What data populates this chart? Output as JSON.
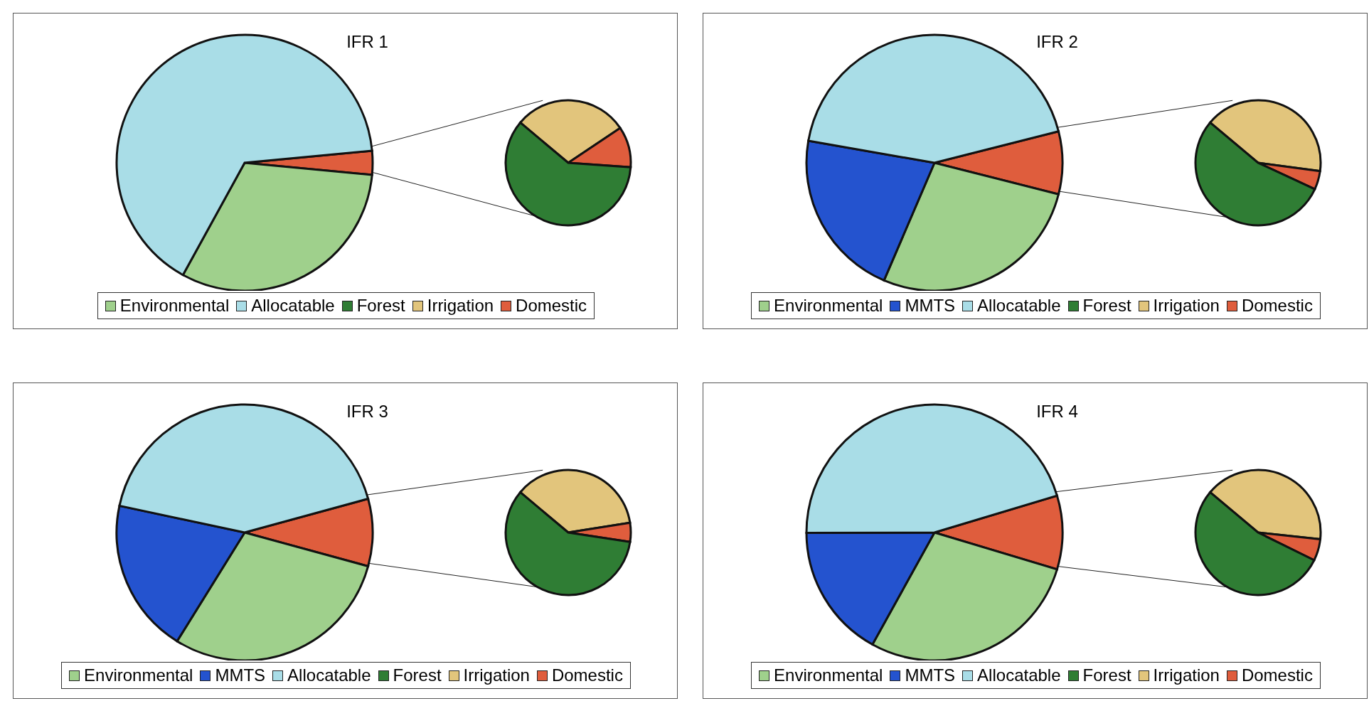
{
  "chart_data": [
    {
      "type": "pie",
      "title": "IFR 1",
      "categories": [
        "Environmental",
        "Allocatable",
        "Forest",
        "Irrigation",
        "Domestic"
      ],
      "colors": [
        "#9fd08c",
        "#a9dde7",
        "#2f7d34",
        "#e2c57c",
        "#df5d3d"
      ],
      "legend": "bottom",
      "series": [
        {
          "values": [
            31.5,
            65.5,
            null,
            null,
            3
          ]
        },
        {
          "values": [
            null,
            null,
            60,
            29.5,
            10.5
          ]
        }
      ]
    },
    {
      "type": "pie",
      "title": "IFR 2",
      "categories": [
        "Environmental",
        "MMTS",
        "Allocatable",
        "Forest",
        "Irrigation",
        "Domestic"
      ],
      "colors": [
        "#9fd08c",
        "#2453cf",
        "#a9dde7",
        "#2f7d34",
        "#e2c57c",
        "#df5d3d"
      ],
      "legend": "bottom",
      "series": [
        {
          "values": [
            27.5,
            21.3,
            43.3,
            null,
            null,
            7.9
          ]
        },
        {
          "values": [
            null,
            null,
            null,
            54.2,
            41,
            4.8
          ]
        }
      ]
    },
    {
      "type": "pie",
      "title": "IFR 3",
      "categories": [
        "Environmental",
        "MMTS",
        "Allocatable",
        "Forest",
        "Irrigation",
        "Domestic"
      ],
      "colors": [
        "#9fd08c",
        "#2453cf",
        "#a9dde7",
        "#2f7d34",
        "#e2c57c",
        "#df5d3d"
      ],
      "legend": "bottom",
      "series": [
        {
          "values": [
            29.6,
            19.5,
            42.4,
            null,
            null,
            8.5
          ]
        },
        {
          "values": [
            null,
            null,
            null,
            58.7,
            36.4,
            4.9
          ]
        }
      ]
    },
    {
      "type": "pie",
      "title": "IFR 4",
      "categories": [
        "Environmental",
        "MMTS",
        "Allocatable",
        "Forest",
        "Irrigation",
        "Domestic"
      ],
      "colors": [
        "#9fd08c",
        "#2453cf",
        "#a9dde7",
        "#2f7d34",
        "#e2c57c",
        "#df5d3d"
      ],
      "legend": "bottom",
      "series": [
        {
          "values": [
            28.4,
            16.9,
            45.4,
            null,
            null,
            9.3
          ]
        },
        {
          "values": [
            null,
            null,
            null,
            53.8,
            40.6,
            5.6
          ]
        }
      ]
    }
  ]
}
